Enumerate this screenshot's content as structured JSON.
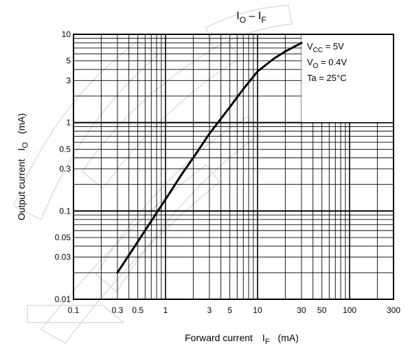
{
  "chart_data": {
    "type": "line",
    "title": "IO – IF",
    "title_parts": {
      "main_a": "I",
      "sub_a": "O",
      "sep": " – ",
      "main_b": "I",
      "sub_b": "F"
    },
    "xlabel": "Forward current IF (mA)",
    "xlabel_parts": {
      "text": "Forward current",
      "main": "I",
      "sub": "F",
      "unit": "(mA)"
    },
    "ylabel": "Output current IO (mA)",
    "ylabel_parts": {
      "text": "Output current",
      "main": "I",
      "sub": "O",
      "unit": "(mA)"
    },
    "x_scale": "log",
    "y_scale": "log",
    "xlim": [
      0.1,
      300
    ],
    "ylim": [
      0.01,
      10
    ],
    "grid": true,
    "x_ticks": [
      0.1,
      0.3,
      0.5,
      1,
      3,
      5,
      10,
      30,
      50,
      100,
      300
    ],
    "x_tick_labels": [
      "0.1",
      "0.3",
      "0.5",
      "1",
      "3",
      "5",
      "10",
      "30",
      "50",
      "100",
      "300"
    ],
    "y_ticks": [
      0.01,
      0.03,
      0.05,
      0.1,
      0.3,
      0.5,
      1,
      3,
      5,
      10
    ],
    "y_tick_labels": [
      "0.01",
      "0.03",
      "0.05",
      "0.1",
      "0.3",
      "0.5",
      "1",
      "3",
      "5",
      "10"
    ],
    "series": [
      {
        "color": "#000000",
        "x": [
          0.3,
          0.5,
          0.8,
          1,
          1.5,
          2,
          3,
          5,
          7,
          10,
          15,
          20,
          30
        ],
        "y": [
          0.02,
          0.045,
          0.095,
          0.135,
          0.26,
          0.4,
          0.75,
          1.5,
          2.4,
          3.8,
          5.3,
          6.4,
          8.0
        ]
      }
    ],
    "conditions": [
      {
        "main": "V",
        "sub": "CC",
        "rest": " = 5V"
      },
      {
        "main": "V",
        "sub": "O",
        "rest": " = 0.4V"
      },
      {
        "main": "Ta = 25°C",
        "sub": "",
        "rest": ""
      }
    ]
  }
}
